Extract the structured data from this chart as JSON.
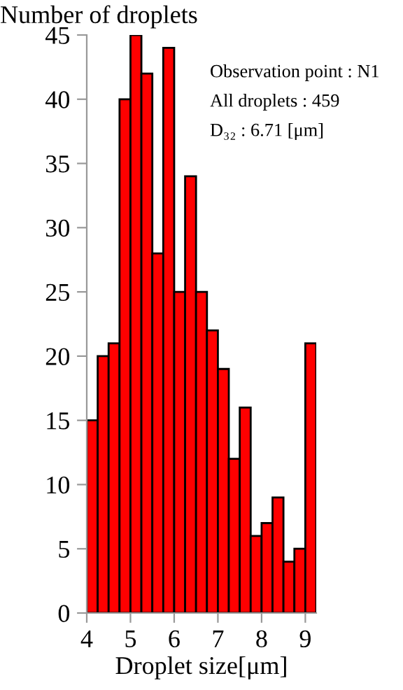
{
  "chart_data": {
    "type": "histogram",
    "ylabel": "Number of droplets",
    "xlabel": "Droplet size[μm]",
    "bins": [
      4,
      4.25,
      4.5,
      4.75,
      5,
      5.25,
      5.5,
      5.75,
      6,
      6.25,
      6.5,
      6.75,
      7,
      7.25,
      7.5,
      7.75,
      8,
      8.25,
      8.5,
      8.75,
      9,
      9.25
    ],
    "values": [
      15,
      20,
      21,
      40,
      45,
      42,
      28,
      44,
      25,
      34,
      25,
      22,
      19,
      12,
      16,
      6,
      7,
      9,
      4,
      5,
      21
    ],
    "color": "#ff0000",
    "xlim": [
      4,
      9.25
    ],
    "xticks": [
      4,
      5,
      6,
      7,
      8,
      9
    ],
    "ylim": [
      0,
      45
    ],
    "yticks": [
      0,
      5,
      10,
      15,
      20,
      25,
      30,
      35,
      40,
      45
    ],
    "grid": false,
    "annotations": [
      "Observation point : N1",
      "All droplets : 459",
      "D₃₂ : 6.71 [μm]"
    ]
  }
}
